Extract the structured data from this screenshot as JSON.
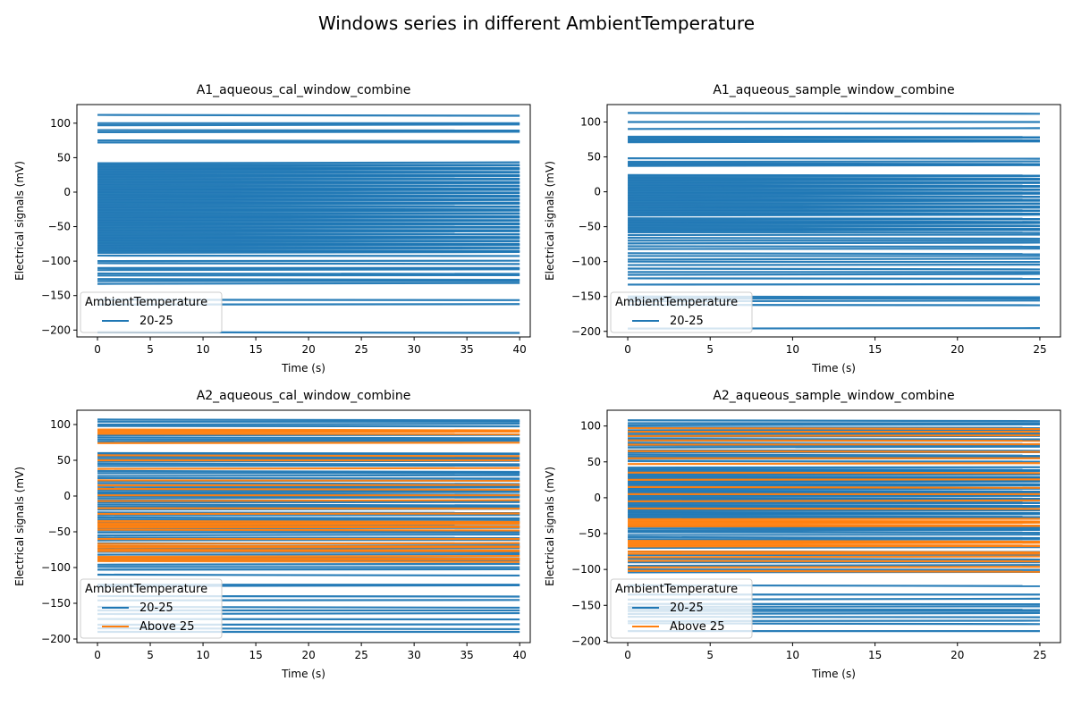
{
  "figure": {
    "suptitle": "Windows series in different AmbientTemperature"
  },
  "chart_data": [
    {
      "type": "line",
      "title": "A1_aqueous_cal_window_combine",
      "xlabel": "Time (s)",
      "ylabel": "Electrical signals (mV)",
      "xlim": [
        -1.95,
        41
      ],
      "ylim": [
        -210,
        127
      ],
      "xticks": [
        0,
        5,
        10,
        15,
        20,
        25,
        30,
        35,
        40
      ],
      "yticks": [
        -200,
        -150,
        -100,
        -50,
        0,
        50,
        100
      ],
      "legend": {
        "title": "AmbientTemperature",
        "location": "lower left",
        "entries": [
          "20-25"
        ]
      },
      "series": [
        {
          "name": "20-25",
          "color": "#1f77b4",
          "x_range": [
            0,
            40
          ],
          "levels": [
            112,
            100,
            97,
            90,
            87,
            75,
            72,
            42,
            40,
            38,
            36,
            34,
            32,
            30,
            28,
            26,
            24,
            22,
            20,
            18,
            16,
            14,
            12,
            10,
            8,
            6,
            4,
            2,
            0,
            -2,
            -4,
            -6,
            -8,
            -10,
            -12,
            -14,
            -16,
            -18,
            -20,
            -22,
            -24,
            -26,
            -28,
            -30,
            -32,
            -34,
            -36,
            -38,
            -40,
            -42,
            -44,
            -46,
            -48,
            -50,
            -52,
            -54,
            -56,
            -58,
            -60,
            -62,
            -64,
            -66,
            -68,
            -70,
            -72,
            -74,
            -76,
            -78,
            -80,
            -82,
            -84,
            -86,
            -88,
            -92,
            -100,
            -103,
            -110,
            -113,
            -118,
            -121,
            -126,
            -129,
            -133,
            -156,
            -163,
            -203
          ]
        }
      ]
    },
    {
      "type": "line",
      "title": "A1_aqueous_sample_window_combine",
      "xlabel": "Time (s)",
      "ylabel": "Electrical signals (mV)",
      "xlim": [
        -1.25,
        26.25
      ],
      "ylim": [
        -208,
        125
      ],
      "xticks": [
        0,
        5,
        10,
        15,
        20,
        25
      ],
      "yticks": [
        -200,
        -150,
        -100,
        -50,
        0,
        50,
        100
      ],
      "legend": {
        "title": "AmbientTemperature",
        "location": "lower left",
        "entries": [
          "20-25"
        ]
      },
      "series": [
        {
          "name": "20-25",
          "color": "#1f77b4",
          "x_range": [
            0,
            25
          ],
          "levels": [
            113,
            100,
            90,
            79,
            77,
            75,
            73,
            71,
            48,
            43,
            41,
            39,
            37,
            24,
            22,
            20,
            18,
            16,
            14,
            12,
            10,
            8,
            6,
            4,
            2,
            0,
            -2,
            -4,
            -6,
            -8,
            -10,
            -12,
            -14,
            -16,
            -18,
            -20,
            -22,
            -24,
            -26,
            -28,
            -30,
            -32,
            -34,
            -38,
            -40,
            -42,
            -44,
            -46,
            -48,
            -50,
            -52,
            -54,
            -56,
            -58,
            -62,
            -66,
            -70,
            -74,
            -78,
            -82,
            -88,
            -92,
            -97,
            -100,
            -105,
            -110,
            -115,
            -119,
            -124,
            -133,
            -150,
            -153,
            -157,
            -162,
            -196
          ]
        }
      ]
    },
    {
      "type": "line",
      "title": "A2_aqueous_cal_window_combine",
      "xlabel": "Time (s)",
      "ylabel": "Electrical signals (mV)",
      "xlim": [
        -1.95,
        41
      ],
      "ylim": [
        -205,
        120
      ],
      "xticks": [
        0,
        5,
        10,
        15,
        20,
        25,
        30,
        35,
        40
      ],
      "yticks": [
        -200,
        -150,
        -100,
        -50,
        0,
        50,
        100
      ],
      "legend": {
        "title": "AmbientTemperature",
        "location": "lower left",
        "entries": [
          "20-25",
          "Above 25"
        ]
      },
      "series": [
        {
          "name": "20-25",
          "color": "#1f77b4",
          "x_range": [
            0,
            40
          ],
          "levels": [
            107,
            104,
            100,
            98,
            85,
            82,
            79,
            76,
            60,
            58,
            55,
            52,
            48,
            45,
            42,
            35,
            32,
            28,
            25,
            21,
            18,
            14,
            11,
            8,
            5,
            3,
            0,
            -3,
            -6,
            -9,
            -12,
            -15,
            -19,
            -23,
            -27,
            -30,
            -33,
            -37,
            -41,
            -45,
            -48,
            -51,
            -55,
            -58,
            -62,
            -66,
            -70,
            -74,
            -78,
            -82,
            -86,
            -90,
            -96,
            -99,
            -103,
            -110,
            -124,
            -126,
            -140,
            -146,
            -155,
            -160,
            -165,
            -172,
            -180,
            -185,
            -190
          ]
        },
        {
          "name": "Above 25",
          "color": "#ff7f0e",
          "x_range": [
            0,
            40
          ],
          "levels": [
            93,
            91,
            89,
            87,
            74,
            57,
            50,
            38,
            22,
            15,
            10,
            1,
            -7,
            -17,
            -25,
            -35,
            -38,
            -40,
            -42,
            -44,
            -47,
            -60,
            -67,
            -70,
            -72,
            -75,
            -77,
            -85,
            -87,
            -89,
            -91
          ]
        }
      ]
    },
    {
      "type": "line",
      "title": "A2_aqueous_sample_window_combine",
      "xlabel": "Time (s)",
      "ylabel": "Electrical signals (mV)",
      "xlim": [
        -1.25,
        26.25
      ],
      "ylim": [
        -202,
        122
      ],
      "xticks": [
        0,
        5,
        10,
        15,
        20,
        25
      ],
      "yticks": [
        -200,
        -150,
        -100,
        -50,
        0,
        50,
        100
      ],
      "legend": {
        "title": "AmbientTemperature",
        "location": "lower left",
        "entries": [
          "20-25",
          "Above 25"
        ]
      },
      "series": [
        {
          "name": "20-25",
          "color": "#1f77b4",
          "x_range": [
            0,
            25
          ],
          "levels": [
            108,
            104,
            101,
            98,
            94,
            91,
            88,
            85,
            82,
            79,
            76,
            73,
            70,
            66,
            63,
            60,
            57,
            54,
            51,
            42,
            40,
            38,
            36,
            34,
            32,
            30,
            28,
            26,
            24,
            22,
            20,
            18,
            16,
            14,
            12,
            10,
            8,
            6,
            4,
            2,
            0,
            -2,
            -4,
            -6,
            -8,
            -10,
            -12,
            -14,
            -16,
            -18,
            -20,
            -22,
            -24,
            -26,
            -28,
            -40,
            -43,
            -46,
            -48,
            -52,
            -55,
            -58,
            -70,
            -75,
            -80,
            -85,
            -90,
            -95,
            -100,
            -104,
            -122,
            -135,
            -142,
            -148,
            -152,
            -155,
            -158,
            -162,
            -166,
            -172,
            -175,
            -186
          ]
        },
        {
          "name": "Above 25",
          "color": "#ff7f0e",
          "x_range": [
            0,
            25
          ],
          "levels": [
            97,
            92,
            86,
            80,
            74,
            65,
            55,
            47,
            35,
            25,
            15,
            5,
            -5,
            -15,
            -30,
            -32,
            -34,
            -36,
            -38,
            -40,
            -60,
            -62,
            -64,
            -66,
            -68,
            -75,
            -78,
            -83,
            -88,
            -97,
            -102
          ]
        }
      ]
    }
  ]
}
